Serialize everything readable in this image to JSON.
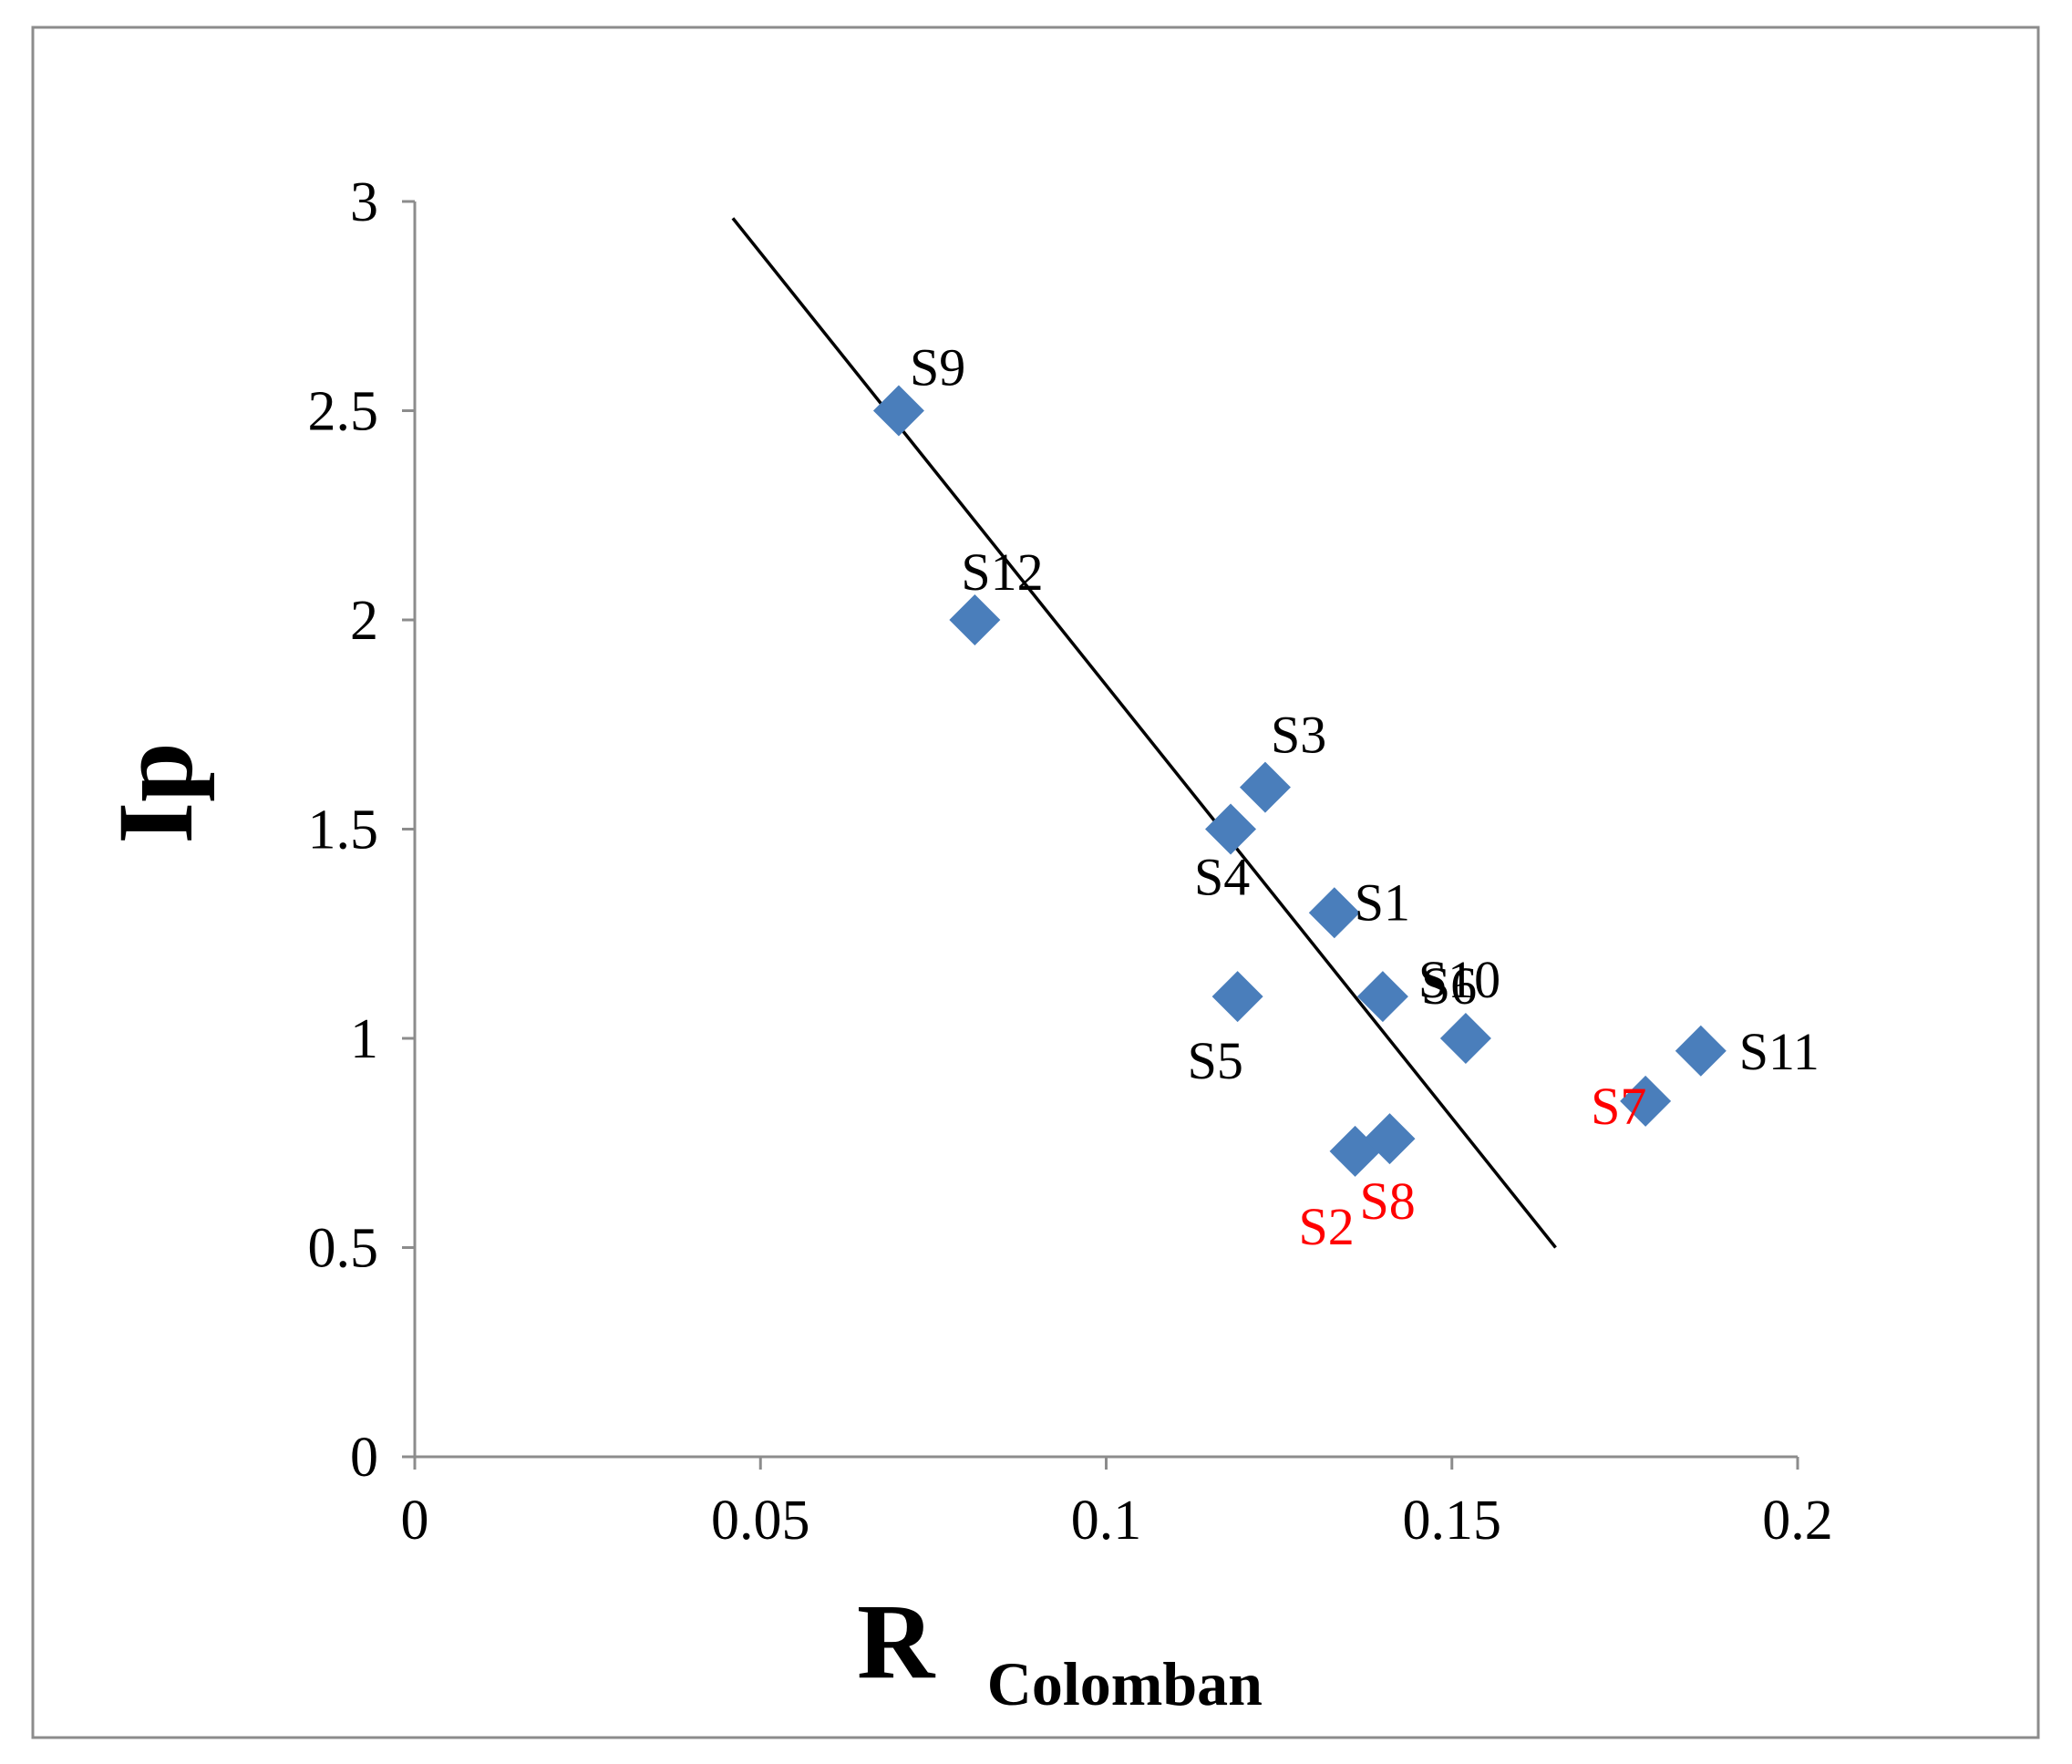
{
  "chart_data": {
    "type": "scatter",
    "title": "",
    "xlabel": "R",
    "xlabel_subscript": "Colomban",
    "ylabel": "Ip",
    "xlim": [
      0,
      0.2
    ],
    "ylim": [
      0,
      3
    ],
    "x_ticks": [
      "0",
      "0.05",
      "0.1",
      "0.15",
      "0.2"
    ],
    "y_ticks": [
      "0",
      "0.5",
      "1",
      "1.5",
      "2",
      "2.5",
      "3"
    ],
    "grid": false,
    "legend": "none",
    "marker": "diamond",
    "marker_color": "#4a7ebb",
    "normal_label_color": "#000000",
    "highlight_label_color": "#ff0000",
    "points": [
      {
        "label": "S9",
        "x": 0.07,
        "y": 2.5,
        "highlight": false
      },
      {
        "label": "S12",
        "x": 0.081,
        "y": 2.0,
        "highlight": false
      },
      {
        "label": "S3",
        "x": 0.123,
        "y": 1.6,
        "highlight": false
      },
      {
        "label": "S4",
        "x": 0.118,
        "y": 1.5,
        "highlight": false
      },
      {
        "label": "S1",
        "x": 0.133,
        "y": 1.3,
        "highlight": false
      },
      {
        "label": "S5",
        "x": 0.119,
        "y": 1.1,
        "highlight": false
      },
      {
        "label": "S6",
        "x": 0.14,
        "y": 1.1,
        "highlight": false
      },
      {
        "label": "S11",
        "x": 0.186,
        "y": 0.97,
        "highlight": false
      },
      {
        "label": "S10",
        "x": 0.152,
        "y": 1.0,
        "highlight": false
      },
      {
        "label": "S7",
        "x": 0.178,
        "y": 0.85,
        "highlight": true
      },
      {
        "label": "S2",
        "x": 0.136,
        "y": 0.73,
        "highlight": true
      },
      {
        "label": "S8",
        "x": 0.141,
        "y": 0.76,
        "highlight": true
      }
    ],
    "trendline": {
      "x1": 0.046,
      "y1": 2.96,
      "x2": 0.165,
      "y2": 0.5,
      "color": "#000000"
    }
  }
}
